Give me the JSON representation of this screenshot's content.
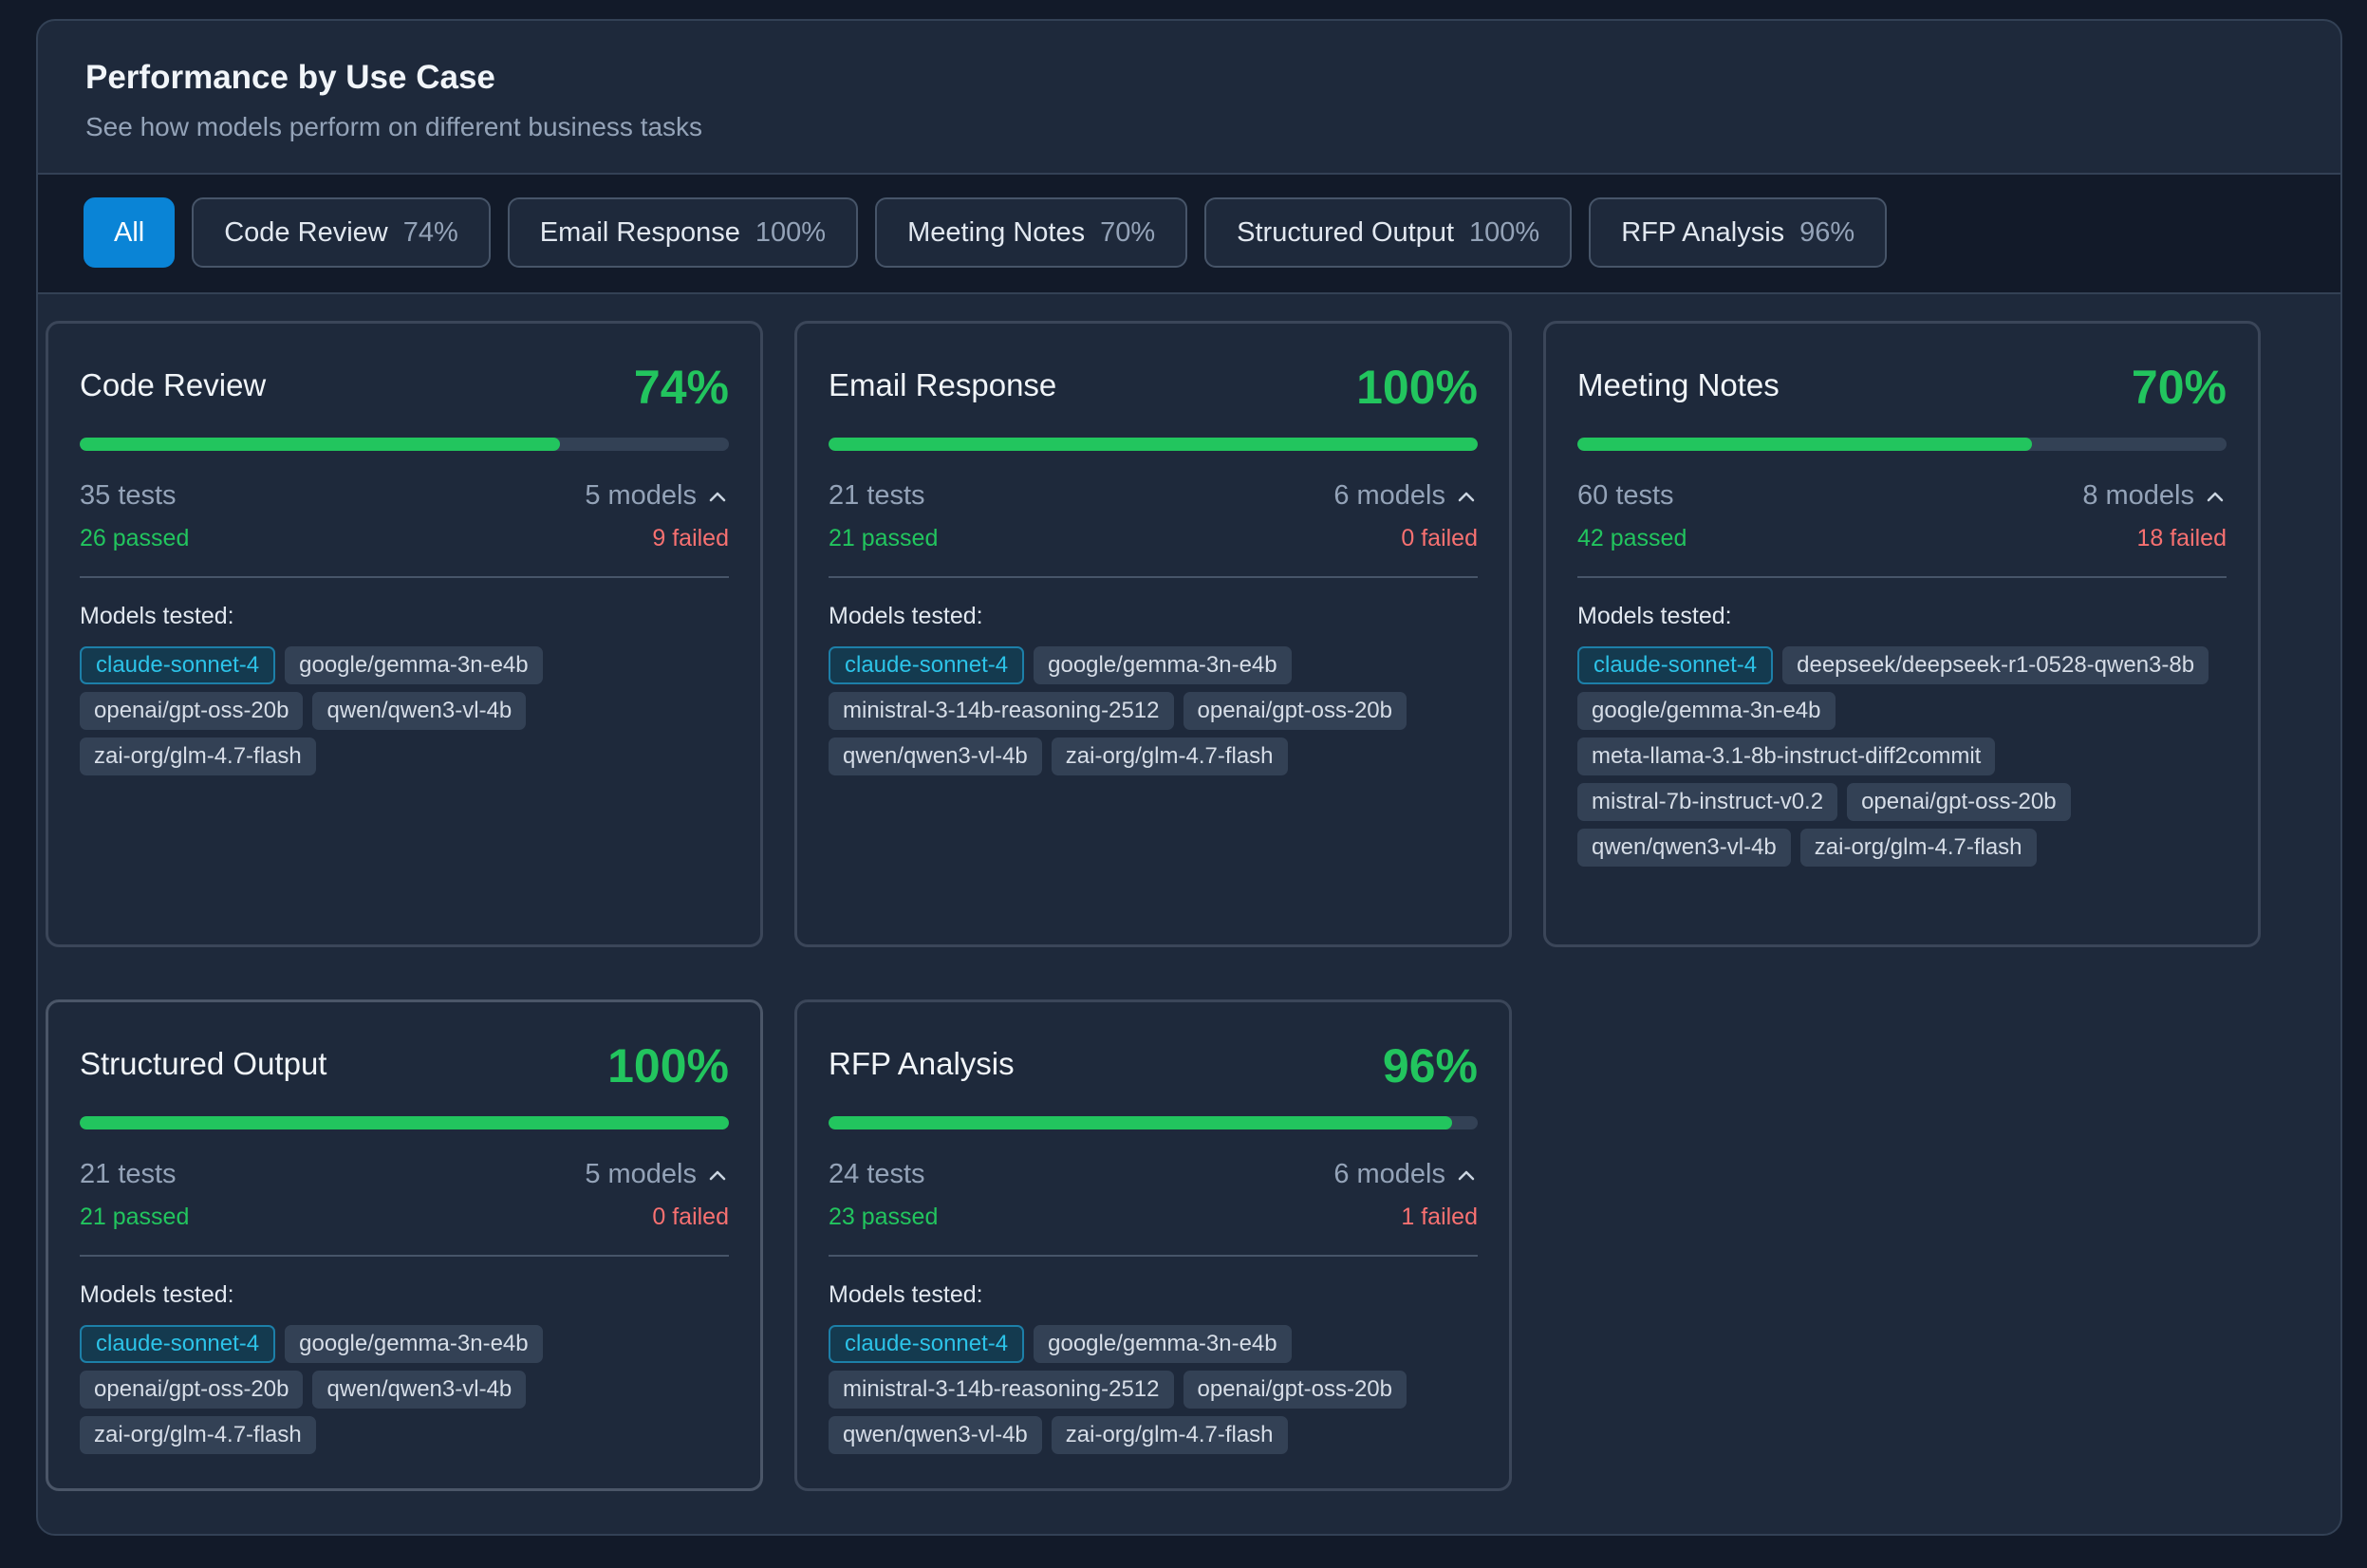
{
  "header": {
    "title": "Performance by Use Case",
    "subtitle": "See how models perform on different business tasks"
  },
  "filters": [
    {
      "label": "All",
      "pct": ""
    },
    {
      "label": "Code Review",
      "pct": "74%"
    },
    {
      "label": "Email Response",
      "pct": "100%"
    },
    {
      "label": "Meeting Notes",
      "pct": "70%"
    },
    {
      "label": "Structured Output",
      "pct": "100%"
    },
    {
      "label": "RFP Analysis",
      "pct": "96%"
    }
  ],
  "colors": {
    "accent": "#0a84d6",
    "pass": "#22c55e",
    "fail": "#f87171",
    "highlight_tag": "#2cc3e8"
  },
  "cards": [
    {
      "name": "Code Review",
      "pct_label": "74%",
      "progress": 0.74,
      "tests": "35 tests",
      "models": "5 models",
      "passed": "26 passed",
      "failed": "9 failed",
      "models_label": "Models tested:",
      "tags": [
        "claude-sonnet-4",
        "google/gemma-3n-e4b",
        "openai/gpt-oss-20b",
        "qwen/qwen3-vl-4b",
        "zai-org/glm-4.7-flash"
      ]
    },
    {
      "name": "Email Response",
      "pct_label": "100%",
      "progress": 1.0,
      "tests": "21 tests",
      "models": "6 models",
      "passed": "21 passed",
      "failed": "0 failed",
      "models_label": "Models tested:",
      "tags": [
        "claude-sonnet-4",
        "google/gemma-3n-e4b",
        "ministral-3-14b-reasoning-2512",
        "openai/gpt-oss-20b",
        "qwen/qwen3-vl-4b",
        "zai-org/glm-4.7-flash"
      ]
    },
    {
      "name": "Meeting Notes",
      "pct_label": "70%",
      "progress": 0.7,
      "tests": "60 tests",
      "models": "8 models",
      "passed": "42 passed",
      "failed": "18 failed",
      "models_label": "Models tested:",
      "tags": [
        "claude-sonnet-4",
        "deepseek/deepseek-r1-0528-qwen3-8b",
        "google/gemma-3n-e4b",
        "meta-llama-3.1-8b-instruct-diff2commit",
        "mistral-7b-instruct-v0.2",
        "openai/gpt-oss-20b",
        "qwen/qwen3-vl-4b",
        "zai-org/glm-4.7-flash"
      ]
    },
    {
      "name": "Structured Output",
      "pct_label": "100%",
      "progress": 1.0,
      "tests": "21 tests",
      "models": "5 models",
      "passed": "21 passed",
      "failed": "0 failed",
      "models_label": "Models tested:",
      "tags": [
        "claude-sonnet-4",
        "google/gemma-3n-e4b",
        "openai/gpt-oss-20b",
        "qwen/qwen3-vl-4b",
        "zai-org/glm-4.7-flash"
      ]
    },
    {
      "name": "RFP Analysis",
      "pct_label": "96%",
      "progress": 0.96,
      "tests": "24 tests",
      "models": "6 models",
      "passed": "23 passed",
      "failed": "1 failed",
      "models_label": "Models tested:",
      "tags": [
        "claude-sonnet-4",
        "google/gemma-3n-e4b",
        "ministral-3-14b-reasoning-2512",
        "openai/gpt-oss-20b",
        "qwen/qwen3-vl-4b",
        "zai-org/glm-4.7-flash"
      ]
    }
  ]
}
